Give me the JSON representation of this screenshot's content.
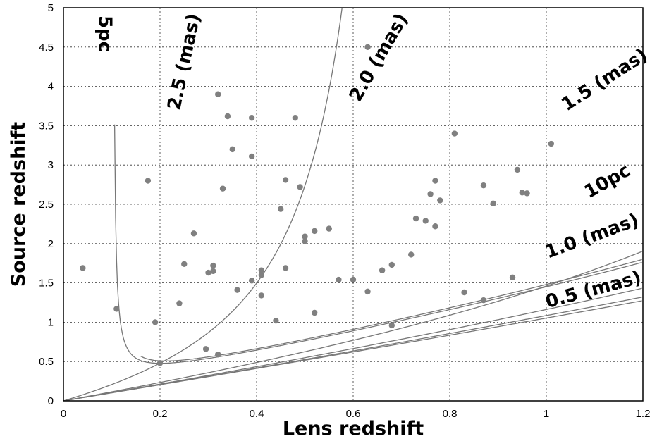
{
  "chart_data": {
    "type": "scatter",
    "xlabel": "Lens redshift",
    "ylabel": "Source redshift",
    "xlim": [
      0,
      1.2
    ],
    "ylim": [
      0,
      5
    ],
    "grid": true,
    "x_ticks": [
      "0",
      "0.2",
      "0.4",
      "0.6",
      "0.8",
      "1",
      "1.2"
    ],
    "y_ticks": [
      "0",
      "0.5",
      "1",
      "1.5",
      "2",
      "2.5",
      "3",
      "3.5",
      "4",
      "4.5",
      "5"
    ],
    "points": [
      [
        0.04,
        1.69
      ],
      [
        0.11,
        1.17
      ],
      [
        0.175,
        2.8
      ],
      [
        0.19,
        1.0
      ],
      [
        0.2,
        0.48
      ],
      [
        0.24,
        1.24
      ],
      [
        0.25,
        1.74
      ],
      [
        0.27,
        2.13
      ],
      [
        0.295,
        0.66
      ],
      [
        0.3,
        1.63
      ],
      [
        0.31,
        1.65
      ],
      [
        0.31,
        1.72
      ],
      [
        0.32,
        0.59
      ],
      [
        0.32,
        3.9
      ],
      [
        0.33,
        2.7
      ],
      [
        0.34,
        3.62
      ],
      [
        0.35,
        3.2
      ],
      [
        0.36,
        1.41
      ],
      [
        0.39,
        3.6
      ],
      [
        0.39,
        3.11
      ],
      [
        0.39,
        1.53
      ],
      [
        0.41,
        1.66
      ],
      [
        0.41,
        1.6
      ],
      [
        0.41,
        1.34
      ],
      [
        0.44,
        1.02
      ],
      [
        0.45,
        2.44
      ],
      [
        0.46,
        2.81
      ],
      [
        0.46,
        1.69
      ],
      [
        0.48,
        3.6
      ],
      [
        0.49,
        2.72
      ],
      [
        0.5,
        2.09
      ],
      [
        0.5,
        2.03
      ],
      [
        0.52,
        2.16
      ],
      [
        0.52,
        1.12
      ],
      [
        0.55,
        2.19
      ],
      [
        0.57,
        1.54
      ],
      [
        0.6,
        1.54
      ],
      [
        0.63,
        4.5
      ],
      [
        0.63,
        1.39
      ],
      [
        0.66,
        1.66
      ],
      [
        0.68,
        1.73
      ],
      [
        0.68,
        0.96
      ],
      [
        0.72,
        1.86
      ],
      [
        0.73,
        2.32
      ],
      [
        0.75,
        2.29
      ],
      [
        0.76,
        2.63
      ],
      [
        0.77,
        2.8
      ],
      [
        0.77,
        2.22
      ],
      [
        0.78,
        2.55
      ],
      [
        0.81,
        3.4
      ],
      [
        0.83,
        1.38
      ],
      [
        0.87,
        2.74
      ],
      [
        0.87,
        1.28
      ],
      [
        0.89,
        2.51
      ],
      [
        0.93,
        1.57
      ],
      [
        0.94,
        2.94
      ],
      [
        0.95,
        2.65
      ],
      [
        0.96,
        2.64
      ],
      [
        1.01,
        3.27
      ]
    ],
    "curves": [
      {
        "name": "5pc",
        "kind": "distance",
        "d": 5
      },
      {
        "name": "10pc",
        "kind": "distance",
        "d": 10
      },
      {
        "name": "2.5 (mas)",
        "kind": "angle",
        "theta": 2.5
      },
      {
        "name": "2.0 (mas)",
        "kind": "angle",
        "theta": 2.0
      },
      {
        "name": "1.5 (mas)",
        "kind": "angle",
        "theta": 1.5
      },
      {
        "name": "1.0 (mas)",
        "kind": "angle",
        "theta": 1.0
      },
      {
        "name": "0.5 (mas)",
        "kind": "angle",
        "theta": 0.5
      }
    ]
  }
}
